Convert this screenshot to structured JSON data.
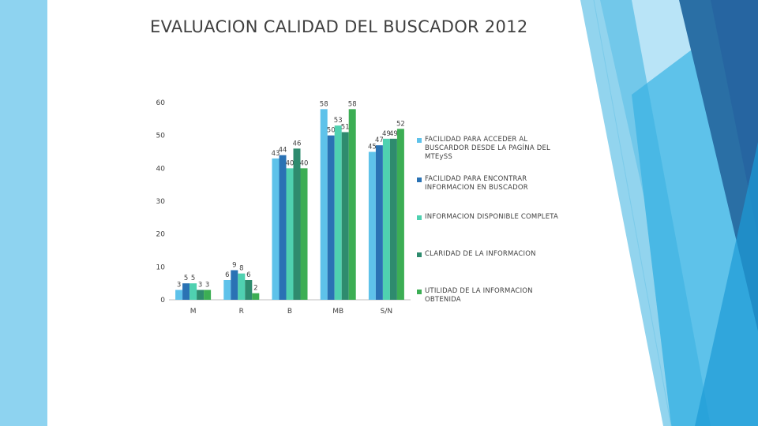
{
  "slide": {
    "title": "EVALUACION CALIDAD DEL BUSCADOR 2012"
  },
  "theme": {
    "decoration_colors": [
      "#8ed3f0",
      "#38b0e0",
      "#2a6fa5",
      "#5ec2ea",
      "#b9e4f7"
    ]
  },
  "chart_data": {
    "type": "bar",
    "title": "",
    "xlabel": "",
    "ylabel": "",
    "categories": [
      "M",
      "R",
      "B",
      "MB",
      "S/N"
    ],
    "ylim": [
      0,
      60
    ],
    "yticks": [
      0,
      10,
      20,
      30,
      40,
      50,
      60
    ],
    "grid": false,
    "legend_position": "right",
    "series": [
      {
        "name": "FACILIDAD PARA ACCEDER AL BUSCARDOR DESDE LA PAGÍNA DEL MTEySS",
        "color": "#5ec2ea",
        "values": [
          3,
          6,
          43,
          58,
          45
        ]
      },
      {
        "name": "FACILIDAD PARA ENCONTRAR INFORMACION EN BUSCADOR",
        "color": "#2a72b4",
        "values": [
          5,
          9,
          44,
          50,
          47
        ]
      },
      {
        "name": "INFORMACION DISPONIBLE COMPLETA",
        "color": "#4fd1b0",
        "values": [
          5,
          8,
          40,
          53,
          49
        ]
      },
      {
        "name": "CLARIDAD DE LA INFORMACION",
        "color": "#2e8b6e",
        "values": [
          3,
          6,
          46,
          51,
          49
        ]
      },
      {
        "name": "UTILIDAD DE LA INFORMACION OBTENIDA",
        "color": "#3cae54",
        "values": [
          3,
          2,
          40,
          58,
          52
        ]
      }
    ]
  }
}
